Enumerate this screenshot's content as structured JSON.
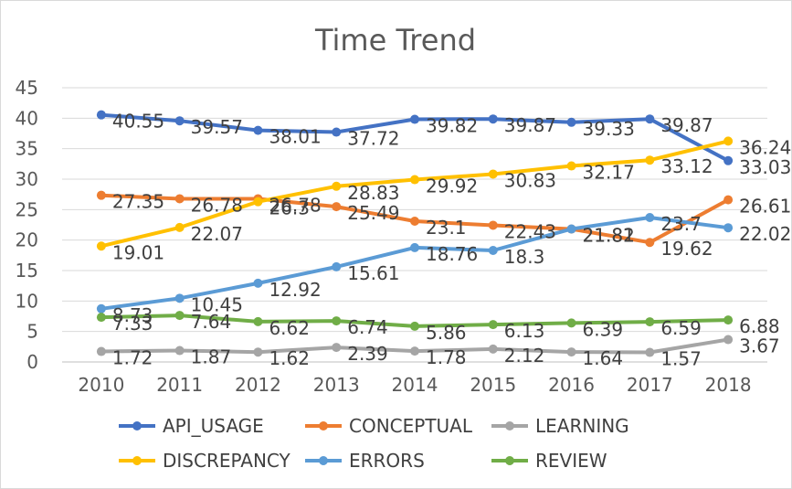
{
  "chart_data": {
    "type": "line",
    "title": "Time Trend",
    "xlabel": "",
    "ylabel": "",
    "categories": [
      "2010",
      "2011",
      "2012",
      "2013",
      "2014",
      "2015",
      "2016",
      "2017",
      "2018"
    ],
    "ylim": [
      0,
      45
    ],
    "yticks": [
      0,
      5,
      10,
      15,
      20,
      25,
      30,
      35,
      40,
      45
    ],
    "grid": "horizontal",
    "legend_position": "bottom",
    "series": [
      {
        "name": "API_USAGE",
        "color": "#4472c4",
        "values": [
          40.55,
          39.57,
          38.01,
          37.72,
          39.82,
          39.87,
          39.33,
          39.87,
          33.03
        ]
      },
      {
        "name": "CONCEPTUAL",
        "color": "#ed7d31",
        "values": [
          27.35,
          26.78,
          26.78,
          25.49,
          23.1,
          22.43,
          21.81,
          19.62,
          26.61
        ]
      },
      {
        "name": "LEARNING",
        "color": "#a5a5a5",
        "values": [
          1.72,
          1.87,
          1.62,
          2.39,
          1.78,
          2.12,
          1.64,
          1.57,
          3.67
        ]
      },
      {
        "name": "DISCREPANCY",
        "color": "#ffc000",
        "values": [
          19.01,
          22.07,
          26.3,
          28.83,
          29.92,
          30.83,
          32.17,
          33.12,
          36.24
        ]
      },
      {
        "name": "ERRORS",
        "color": "#5b9bd5",
        "values": [
          8.73,
          10.45,
          12.92,
          15.61,
          18.76,
          18.3,
          21.82,
          23.7,
          22.02
        ]
      },
      {
        "name": "REVIEW",
        "color": "#70ad47",
        "values": [
          7.33,
          7.64,
          6.62,
          6.74,
          5.86,
          6.13,
          6.39,
          6.59,
          6.88
        ]
      }
    ]
  }
}
